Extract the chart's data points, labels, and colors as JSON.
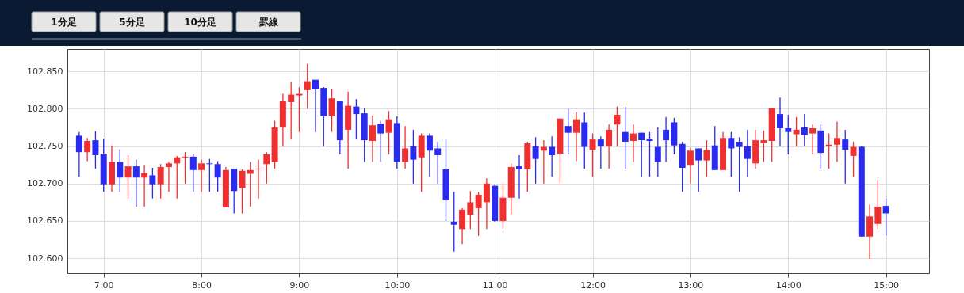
{
  "chart_data": {
    "type": "candlestick",
    "annotations": [
      "1分足",
      "5分足",
      "10分足",
      "罫線"
    ],
    "x": [
      6.75,
      6.8333,
      6.9167,
      7.0,
      7.0833,
      7.1667,
      7.25,
      7.3333,
      7.4167,
      7.5,
      7.5833,
      7.6667,
      7.75,
      7.8333,
      7.9167,
      8.0,
      8.0833,
      8.1667,
      8.25,
      8.3333,
      8.4167,
      8.5,
      8.5833,
      8.6667,
      8.75,
      8.8333,
      8.9167,
      9.0,
      9.0833,
      9.1667,
      9.25,
      9.3333,
      9.4167,
      9.5,
      9.5833,
      9.6667,
      9.75,
      9.8333,
      9.9167,
      10.0,
      10.0833,
      10.1667,
      10.25,
      10.3333,
      10.4167,
      10.5,
      10.5833,
      10.6667,
      10.75,
      10.8333,
      10.9167,
      11.0,
      11.0833,
      11.1667,
      11.25,
      11.3333,
      11.4167,
      11.5,
      11.5833,
      11.6667,
      11.75,
      11.8333,
      11.9167,
      12.0,
      12.0833,
      12.1667,
      12.25,
      12.3333,
      12.4167,
      12.5,
      12.5833,
      12.6667,
      12.75,
      12.8333,
      12.9167,
      13.0,
      13.0833,
      13.1667,
      13.25,
      13.3333,
      13.4167,
      13.5,
      13.5833,
      13.6667,
      13.75,
      13.8333,
      13.9167,
      14.0,
      14.0833,
      14.1667,
      14.25,
      14.3333,
      14.4167,
      14.5,
      14.5833,
      14.6667,
      14.75,
      14.8333,
      14.9167,
      15.0
    ],
    "ohlc": [
      [
        102.764,
        102.769,
        102.709,
        102.742
      ],
      [
        102.742,
        102.761,
        102.73,
        102.757
      ],
      [
        102.758,
        102.77,
        102.72,
        102.738
      ],
      [
        102.739,
        102.76,
        102.689,
        102.699
      ],
      [
        102.699,
        102.751,
        102.689,
        102.729
      ],
      [
        102.729,
        102.746,
        102.689,
        102.708
      ],
      [
        102.708,
        102.738,
        102.68,
        102.723
      ],
      [
        102.723,
        102.732,
        102.669,
        102.708
      ],
      [
        102.708,
        102.725,
        102.669,
        102.714
      ],
      [
        102.711,
        102.721,
        102.68,
        102.699
      ],
      [
        102.699,
        102.726,
        102.68,
        102.722
      ],
      [
        102.722,
        102.729,
        102.689,
        102.727
      ],
      [
        102.727,
        102.737,
        102.68,
        102.735
      ],
      [
        102.735,
        102.742,
        102.7,
        102.736
      ],
      [
        102.736,
        102.739,
        102.689,
        102.718
      ],
      [
        102.718,
        102.732,
        102.689,
        102.727
      ],
      [
        102.727,
        102.733,
        102.689,
        102.726
      ],
      [
        102.726,
        102.73,
        102.689,
        102.708
      ],
      [
        102.668,
        102.722,
        102.668,
        102.718
      ],
      [
        102.72,
        102.72,
        102.66,
        102.69
      ],
      [
        102.694,
        102.719,
        102.66,
        102.717
      ],
      [
        102.713,
        102.729,
        102.669,
        102.718
      ],
      [
        102.719,
        102.732,
        102.68,
        102.72
      ],
      [
        102.726,
        102.742,
        102.7,
        102.739
      ],
      [
        102.729,
        102.784,
        102.72,
        102.775
      ],
      [
        102.775,
        102.82,
        102.75,
        102.81
      ],
      [
        102.809,
        102.836,
        102.759,
        102.819
      ],
      [
        102.818,
        102.829,
        102.769,
        102.82
      ],
      [
        102.825,
        102.86,
        102.8,
        102.837
      ],
      [
        102.839,
        102.839,
        102.769,
        102.826
      ],
      [
        102.828,
        102.829,
        102.75,
        102.79
      ],
      [
        102.791,
        102.827,
        102.769,
        102.814
      ],
      [
        102.81,
        102.81,
        102.739,
        102.758
      ],
      [
        102.772,
        102.823,
        102.72,
        102.804
      ],
      [
        102.803,
        102.813,
        102.759,
        102.793
      ],
      [
        102.794,
        102.801,
        102.729,
        102.758
      ],
      [
        102.757,
        102.791,
        102.729,
        102.778
      ],
      [
        102.78,
        102.784,
        102.729,
        102.767
      ],
      [
        102.768,
        102.797,
        102.739,
        102.786
      ],
      [
        102.781,
        102.79,
        102.72,
        102.729
      ],
      [
        102.729,
        102.777,
        102.72,
        102.747
      ],
      [
        102.75,
        102.772,
        102.7,
        102.732
      ],
      [
        102.735,
        102.767,
        102.689,
        102.764
      ],
      [
        102.764,
        102.767,
        102.709,
        102.744
      ],
      [
        102.747,
        102.756,
        102.7,
        102.738
      ],
      [
        102.719,
        102.759,
        102.65,
        102.678
      ],
      [
        102.649,
        102.689,
        102.609,
        102.645
      ],
      [
        102.639,
        102.667,
        102.619,
        102.665
      ],
      [
        102.658,
        102.69,
        102.639,
        102.675
      ],
      [
        102.667,
        102.689,
        102.63,
        102.685
      ],
      [
        102.675,
        102.707,
        102.639,
        102.7
      ],
      [
        102.697,
        102.699,
        102.649,
        102.65
      ],
      [
        102.65,
        102.7,
        102.639,
        102.681
      ],
      [
        102.681,
        102.727,
        102.659,
        102.722
      ],
      [
        102.723,
        102.738,
        102.68,
        102.719
      ],
      [
        102.719,
        102.756,
        102.689,
        102.754
      ],
      [
        102.75,
        102.762,
        102.7,
        102.733
      ],
      [
        102.744,
        102.758,
        102.7,
        102.749
      ],
      [
        102.749,
        102.763,
        102.709,
        102.738
      ],
      [
        102.74,
        102.787,
        102.7,
        102.787
      ],
      [
        102.777,
        102.8,
        102.739,
        102.768
      ],
      [
        102.768,
        102.796,
        102.73,
        102.786
      ],
      [
        102.782,
        102.795,
        102.72,
        102.749
      ],
      [
        102.745,
        102.767,
        102.709,
        102.759
      ],
      [
        102.759,
        102.763,
        102.72,
        102.75
      ],
      [
        102.75,
        102.779,
        102.72,
        102.772
      ],
      [
        102.779,
        102.803,
        102.75,
        102.792
      ],
      [
        102.769,
        102.803,
        102.72,
        102.756
      ],
      [
        102.757,
        102.779,
        102.729,
        102.767
      ],
      [
        102.768,
        102.768,
        102.709,
        102.758
      ],
      [
        102.76,
        102.769,
        102.709,
        102.757
      ],
      [
        102.749,
        102.775,
        102.709,
        102.729
      ],
      [
        102.772,
        102.789,
        102.729,
        102.758
      ],
      [
        102.782,
        102.788,
        102.739,
        102.751
      ],
      [
        102.753,
        102.756,
        102.689,
        102.721
      ],
      [
        102.725,
        102.748,
        102.7,
        102.744
      ],
      [
        102.747,
        102.747,
        102.689,
        102.731
      ],
      [
        102.731,
        102.758,
        102.709,
        102.745
      ],
      [
        102.751,
        102.777,
        102.718,
        102.718
      ],
      [
        102.718,
        102.769,
        102.718,
        102.761
      ],
      [
        102.761,
        102.769,
        102.709,
        102.747
      ],
      [
        102.756,
        102.762,
        102.689,
        102.749
      ],
      [
        102.75,
        102.772,
        102.709,
        102.733
      ],
      [
        102.727,
        102.772,
        102.72,
        102.758
      ],
      [
        102.754,
        102.771,
        102.729,
        102.758
      ],
      [
        102.757,
        102.801,
        102.729,
        102.801
      ],
      [
        102.793,
        102.815,
        102.75,
        102.774
      ],
      [
        102.774,
        102.792,
        102.739,
        102.769
      ],
      [
        102.766,
        102.789,
        102.75,
        102.772
      ],
      [
        102.775,
        102.793,
        102.75,
        102.765
      ],
      [
        102.767,
        102.779,
        102.739,
        102.774
      ],
      [
        102.771,
        102.779,
        102.72,
        102.741
      ],
      [
        102.75,
        102.767,
        102.72,
        102.752
      ],
      [
        102.752,
        102.783,
        102.729,
        102.761
      ],
      [
        102.759,
        102.772,
        102.7,
        102.745
      ],
      [
        102.737,
        102.756,
        102.709,
        102.749
      ],
      [
        102.749,
        102.75,
        102.629,
        102.629
      ],
      [
        102.629,
        102.672,
        102.599,
        102.656
      ],
      [
        102.646,
        102.705,
        102.639,
        102.669
      ],
      [
        102.67,
        102.68,
        102.63,
        102.66
      ]
    ],
    "colors": [
      "#2b2bf0",
      "#f03030",
      "#2b2bf0",
      "#2b2bf0",
      "#f03030",
      "#2b2bf0",
      "#f03030",
      "#2b2bf0",
      "#f03030",
      "#2b2bf0",
      "#f03030",
      "#f03030",
      "#f03030",
      "#f03030",
      "#2b2bf0",
      "#f03030",
      "#2b2bf0",
      "#2b2bf0",
      "#f03030",
      "#2b2bf0",
      "#f03030",
      "#f03030",
      "#f03030",
      "#f03030",
      "#f03030",
      "#f03030",
      "#f03030",
      "#f03030",
      "#f03030",
      "#2b2bf0",
      "#2b2bf0",
      "#f03030",
      "#2b2bf0",
      "#f03030",
      "#2b2bf0",
      "#2b2bf0",
      "#f03030",
      "#2b2bf0",
      "#f03030",
      "#2b2bf0",
      "#f03030",
      "#2b2bf0",
      "#f03030",
      "#2b2bf0",
      "#2b2bf0",
      "#2b2bf0",
      "#2b2bf0",
      "#f03030",
      "#f03030",
      "#f03030",
      "#f03030",
      "#2b2bf0",
      "#f03030",
      "#f03030",
      "#2b2bf0",
      "#f03030",
      "#2b2bf0",
      "#f03030",
      "#2b2bf0",
      "#f03030",
      "#2b2bf0",
      "#f03030",
      "#2b2bf0",
      "#f03030",
      "#2b2bf0",
      "#f03030",
      "#f03030",
      "#2b2bf0",
      "#f03030",
      "#2b2bf0",
      "#2b2bf0",
      "#2b2bf0",
      "#2b2bf0",
      "#2b2bf0",
      "#2b2bf0",
      "#f03030",
      "#2b2bf0",
      "#f03030",
      "#2b2bf0",
      "#f03030",
      "#2b2bf0",
      "#2b2bf0",
      "#2b2bf0",
      "#f03030",
      "#f03030",
      "#f03030",
      "#2b2bf0",
      "#2b2bf0",
      "#f03030",
      "#2b2bf0",
      "#f03030",
      "#2b2bf0",
      "#f03030",
      "#f03030",
      "#2b2bf0",
      "#f03030",
      "#2b2bf0",
      "#f03030",
      "#f03030",
      "#2b2bf0"
    ],
    "xlim": [
      6.67,
      15.4
    ],
    "ylim": [
      102.58,
      102.88
    ],
    "xticks": [
      {
        "value": 7,
        "label": "7:00"
      },
      {
        "value": 8,
        "label": "8:00"
      },
      {
        "value": 9,
        "label": "9:00"
      },
      {
        "value": 10,
        "label": "10:00"
      },
      {
        "value": 11,
        "label": "11:00"
      },
      {
        "value": 12,
        "label": "12:00"
      },
      {
        "value": 13,
        "label": "13:00"
      },
      {
        "value": 14,
        "label": "14:00"
      },
      {
        "value": 15,
        "label": "15:00"
      }
    ],
    "yticks": [
      {
        "value": 102.6,
        "label": "102.600"
      },
      {
        "value": 102.65,
        "label": "102.650"
      },
      {
        "value": 102.7,
        "label": "102.700"
      },
      {
        "value": 102.75,
        "label": "102.750"
      },
      {
        "value": 102.8,
        "label": "102.800"
      },
      {
        "value": 102.85,
        "label": "102.850"
      }
    ],
    "grid": true
  }
}
